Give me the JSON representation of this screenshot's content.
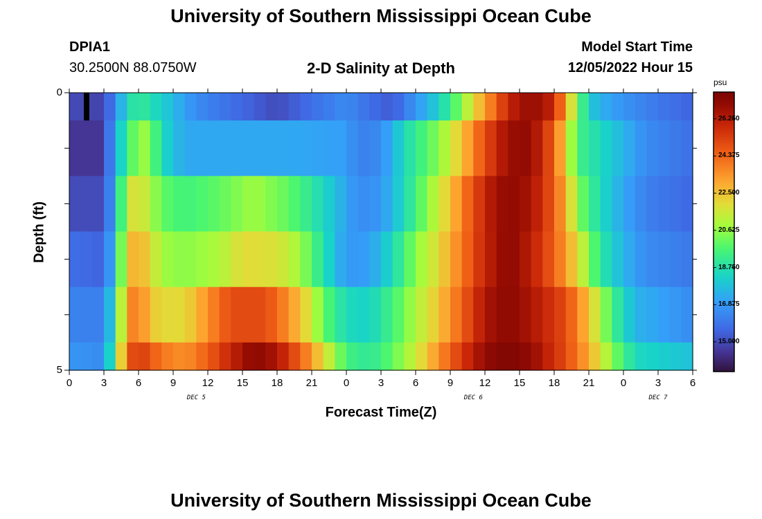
{
  "page": {
    "title_top": "University of Southern Mississippi Ocean Cube",
    "title_bottom": "University of Southern Mississippi Ocean Cube",
    "station_id": "DPIA1",
    "station_coords": "30.2500N  88.0750W",
    "plot_title": "2-D Salinity at Depth",
    "model_start_label": "Model Start Time",
    "model_start_value": "12/05/2022 Hour 15"
  },
  "colors": {
    "background": "#ffffff",
    "marker": "#000000"
  },
  "chart_data": {
    "type": "heatmap",
    "title": "2-D Salinity at Depth",
    "xlabel": "Forecast Time(Z)",
    "ylabel": "Depth (ft)",
    "x_tick_labels": [
      "0",
      "3",
      "6",
      "9",
      "12",
      "15",
      "18",
      "21",
      "0",
      "3",
      "6",
      "9",
      "12",
      "15",
      "18",
      "21",
      "0",
      "3",
      "6"
    ],
    "day_labels": [
      {
        "label": "DEC 5",
        "hour": 11
      },
      {
        "label": "DEC 6",
        "hour": 35
      },
      {
        "label": "DEC 7",
        "hour": 51
      }
    ],
    "y_tick_labels": [
      "0",
      "5"
    ],
    "x_range_hours": [
      0,
      54
    ],
    "y_range_ft": [
      0,
      5
    ],
    "current_time_marker_hour": 1.5,
    "colorbar": {
      "unit": "psu",
      "range": [
        13.5,
        27.6
      ],
      "ticks": [
        "26.250",
        "24.375",
        "22.500",
        "20.625",
        "18.750",
        "16.875",
        "15.000"
      ],
      "tick_values": [
        26.25,
        24.375,
        22.5,
        20.625,
        18.75,
        16.875,
        15.0
      ]
    },
    "levels": [
      {
        "depth_range_ft": [
          0,
          0.5
        ],
        "keyframes": [
          [
            0,
            15.0
          ],
          [
            3,
            14.8
          ],
          [
            4,
            16.5
          ],
          [
            5,
            18.5
          ],
          [
            6,
            19.2
          ],
          [
            8,
            18.2
          ],
          [
            11,
            16.5
          ],
          [
            14,
            15.8
          ],
          [
            18,
            15.0
          ],
          [
            21,
            15.8
          ],
          [
            24,
            16.5
          ],
          [
            26,
            15.8
          ],
          [
            28,
            15.3
          ],
          [
            30,
            16.8
          ],
          [
            32,
            18.2
          ],
          [
            34,
            20.5
          ],
          [
            35,
            22.0
          ],
          [
            37,
            24.5
          ],
          [
            38,
            26.0
          ],
          [
            40,
            27.0
          ],
          [
            42,
            26.0
          ],
          [
            43,
            23.0
          ],
          [
            44,
            20.5
          ],
          [
            45,
            18.0
          ],
          [
            47,
            17.0
          ],
          [
            50,
            16.2
          ],
          [
            54,
            15.5
          ]
        ]
      },
      {
        "depth_range_ft": [
          0.5,
          1.5
        ],
        "keyframes": [
          [
            0,
            14.5
          ],
          [
            3,
            14.5
          ],
          [
            4,
            17.5
          ],
          [
            5,
            19.2
          ],
          [
            6,
            20.8
          ],
          [
            7,
            20.5
          ],
          [
            8,
            18.5
          ],
          [
            10,
            17.2
          ],
          [
            20,
            17.2
          ],
          [
            24,
            17.0
          ],
          [
            25,
            16.2
          ],
          [
            27,
            16.5
          ],
          [
            29,
            18.5
          ],
          [
            32,
            20.5
          ],
          [
            34,
            22.5
          ],
          [
            36,
            25.0
          ],
          [
            38,
            26.8
          ],
          [
            40,
            27.0
          ],
          [
            42,
            24.5
          ],
          [
            43,
            22.0
          ],
          [
            44,
            19.5
          ],
          [
            46,
            18.5
          ],
          [
            48,
            17.5
          ],
          [
            50,
            16.5
          ],
          [
            54,
            15.8
          ]
        ]
      },
      {
        "depth_range_ft": [
          1.5,
          2.5
        ],
        "keyframes": [
          [
            0,
            15.0
          ],
          [
            3,
            15.0
          ],
          [
            4,
            17.5
          ],
          [
            5,
            21.5
          ],
          [
            6,
            22.0
          ],
          [
            7,
            21.0
          ],
          [
            8,
            20.0
          ],
          [
            10,
            19.5
          ],
          [
            13,
            20.0
          ],
          [
            16,
            20.8
          ],
          [
            19,
            20.0
          ],
          [
            21,
            19.0
          ],
          [
            23,
            17.8
          ],
          [
            25,
            16.5
          ],
          [
            27,
            16.8
          ],
          [
            29,
            18.5
          ],
          [
            31,
            20.5
          ],
          [
            33,
            22.5
          ],
          [
            35,
            25.0
          ],
          [
            37,
            26.8
          ],
          [
            39,
            27.0
          ],
          [
            41,
            25.8
          ],
          [
            43,
            23.0
          ],
          [
            44,
            20.5
          ],
          [
            46,
            18.5
          ],
          [
            48,
            17.2
          ],
          [
            50,
            16.2
          ],
          [
            54,
            15.6
          ]
        ]
      },
      {
        "depth_range_ft": [
          2.5,
          3.5
        ],
        "keyframes": [
          [
            0,
            15.8
          ],
          [
            3,
            15.5
          ],
          [
            4,
            18.0
          ],
          [
            5,
            22.5
          ],
          [
            6,
            23.0
          ],
          [
            7,
            22.0
          ],
          [
            8,
            20.8
          ],
          [
            10,
            20.5
          ],
          [
            13,
            21.0
          ],
          [
            15,
            22.0
          ],
          [
            18,
            21.8
          ],
          [
            20,
            20.8
          ],
          [
            22,
            18.8
          ],
          [
            24,
            16.8
          ],
          [
            26,
            17.0
          ],
          [
            28,
            18.5
          ],
          [
            30,
            20.5
          ],
          [
            32,
            22.0
          ],
          [
            34,
            24.0
          ],
          [
            36,
            26.0
          ],
          [
            38,
            27.2
          ],
          [
            40,
            26.2
          ],
          [
            42,
            24.5
          ],
          [
            44,
            22.0
          ],
          [
            46,
            19.0
          ],
          [
            48,
            17.5
          ],
          [
            50,
            16.5
          ],
          [
            54,
            16.0
          ]
        ]
      },
      {
        "depth_range_ft": [
          3.5,
          4.5
        ],
        "keyframes": [
          [
            0,
            16.3
          ],
          [
            3,
            16.2
          ],
          [
            4,
            19.0
          ],
          [
            5,
            23.5
          ],
          [
            6,
            24.0
          ],
          [
            7,
            22.5
          ],
          [
            8,
            22.0
          ],
          [
            10,
            22.0
          ],
          [
            12,
            23.5
          ],
          [
            14,
            25.0
          ],
          [
            17,
            25.0
          ],
          [
            19,
            23.5
          ],
          [
            21,
            21.5
          ],
          [
            22,
            20.0
          ],
          [
            24,
            18.5
          ],
          [
            26,
            18.3
          ],
          [
            28,
            19.5
          ],
          [
            30,
            21.0
          ],
          [
            32,
            22.5
          ],
          [
            34,
            24.5
          ],
          [
            36,
            26.5
          ],
          [
            38,
            27.2
          ],
          [
            40,
            26.5
          ],
          [
            43,
            25.0
          ],
          [
            45,
            22.5
          ],
          [
            47,
            19.5
          ],
          [
            49,
            17.5
          ],
          [
            54,
            16.5
          ]
        ]
      },
      {
        "depth_range_ft": [
          4.5,
          5.0
        ],
        "keyframes": [
          [
            0,
            16.8
          ],
          [
            3,
            16.5
          ],
          [
            4,
            20.0
          ],
          [
            5,
            24.5
          ],
          [
            6,
            25.5
          ],
          [
            8,
            24.0
          ],
          [
            10,
            23.5
          ],
          [
            12,
            24.5
          ],
          [
            14,
            26.0
          ],
          [
            16,
            27.2
          ],
          [
            18,
            26.5
          ],
          [
            20,
            24.5
          ],
          [
            22,
            22.0
          ],
          [
            24,
            19.5
          ],
          [
            26,
            19.0
          ],
          [
            28,
            20.0
          ],
          [
            30,
            21.5
          ],
          [
            32,
            23.5
          ],
          [
            34,
            25.5
          ],
          [
            36,
            27.0
          ],
          [
            38,
            27.5
          ],
          [
            40,
            27.0
          ],
          [
            43,
            25.0
          ],
          [
            45,
            23.0
          ],
          [
            47,
            20.5
          ],
          [
            49,
            18.5
          ],
          [
            54,
            17.8
          ]
        ]
      }
    ]
  }
}
